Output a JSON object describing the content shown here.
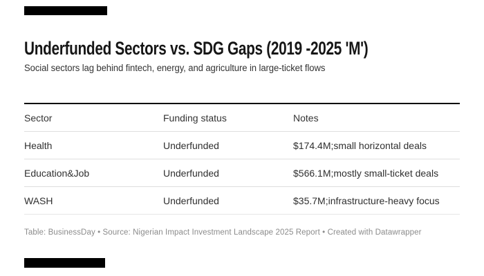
{
  "header": {
    "title": "Underfunded Sectors vs. SDG Gaps (2019 -2025 'M')",
    "subtitle": "Social sectors lag behind fintech, energy, and agriculture in large-ticket flows"
  },
  "table": {
    "columns": [
      "Sector",
      "Funding status",
      "Notes"
    ],
    "rows": [
      {
        "sector": "Health",
        "funding_status": "Underfunded",
        "notes": "$174.4M;small horizontal deals"
      },
      {
        "sector": "Education&Job",
        "funding_status": "Underfunded",
        "notes": "$566.1M;mostly small-ticket deals"
      },
      {
        "sector": "WASH",
        "funding_status": "Underfunded",
        "notes": "$35.7M;infrastructure-heavy focus"
      }
    ]
  },
  "footer": {
    "attribution": "Table: BusinessDay • Source: Nigerian Impact Investment Landscape 2025 Report • Created with Datawrapper"
  },
  "colors": {
    "logo_bar": "#000000",
    "table_top_border": "#000000",
    "row_separator": "#dedede",
    "title_text": "#161616",
    "body_text": "#2f2f2f",
    "footer_text": "#8b8b8b",
    "background": "#ffffff"
  }
}
